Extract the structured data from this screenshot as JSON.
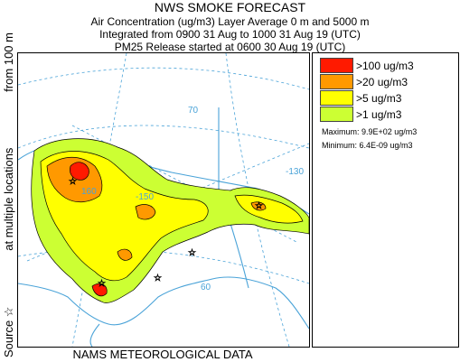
{
  "header": {
    "title": "NWS SMOKE FORECAST",
    "line1": "Air Concentration (ug/m3) Layer Average    0 m  and  5000 m",
    "line2": "Integrated from 0900 31 Aug to 1000 31 Aug 19 (UTC)",
    "line3": "PM25 Release started at 0600 30 Aug 19 (UTC)"
  },
  "side_label": {
    "part1": "Source ☆",
    "part2": "at multiple locations",
    "part3": "from   100 m"
  },
  "legend": {
    "items": [
      {
        "label": ">100 ug/m3",
        "color": "#ff1a00"
      },
      {
        "label": ">20 ug/m3",
        "color": "#ff9900"
      },
      {
        "label": ">5 ug/m3",
        "color": "#ffff00"
      },
      {
        "label": ">1 ug/m3",
        "color": "#ccff33"
      }
    ],
    "maximum": "Maximum: 9.9E+02 ug/m3",
    "minimum": "Minimum: 6.4E-09 ug/m3"
  },
  "map": {
    "grid_labels": [
      "70",
      "-130",
      "160",
      "-150",
      "60"
    ],
    "colors": {
      "coast": "#4aa3d8",
      "grid": "#4aa3d8",
      "contour": "#000000"
    }
  },
  "footer": "NAMS METEOROLOGICAL DATA"
}
